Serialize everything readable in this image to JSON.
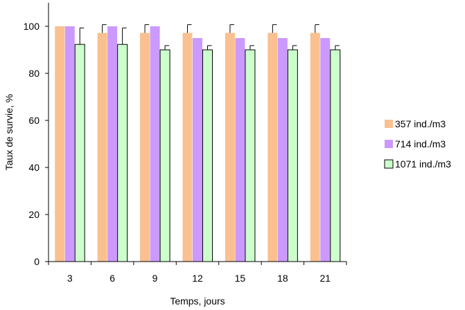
{
  "chart_data": {
    "type": "bar",
    "xlabel": "Temps, jours",
    "ylabel": "Taux de survie, %",
    "categories": [
      "3",
      "6",
      "9",
      "12",
      "15",
      "18",
      "21"
    ],
    "ylim": [
      0,
      110
    ],
    "yticks": [
      0,
      20,
      40,
      60,
      80,
      100
    ],
    "grid": false,
    "legend_position": "right",
    "series": [
      {
        "name": "357 ind./m3",
        "color": "#FAC090",
        "values": [
          100,
          97.2,
          97.2,
          97.2,
          97.2,
          97.2,
          97.2
        ],
        "error": [
          0,
          3.5,
          3.5,
          3.5,
          3.5,
          3.5,
          3.5
        ]
      },
      {
        "name": "714 ind./m3",
        "color": "#CC99FF",
        "values": [
          100,
          100,
          100,
          95,
          95,
          95,
          95
        ],
        "error": [
          0,
          0,
          0,
          0,
          0,
          0,
          0
        ]
      },
      {
        "name": "1071 ind./m3",
        "color": "#CCFFCC",
        "stroke": "#000000",
        "values": [
          92.3,
          92.3,
          90,
          90,
          90,
          90,
          90
        ],
        "error": [
          7,
          7,
          1.8,
          1.8,
          1.8,
          1.8,
          1.8
        ]
      }
    ]
  }
}
